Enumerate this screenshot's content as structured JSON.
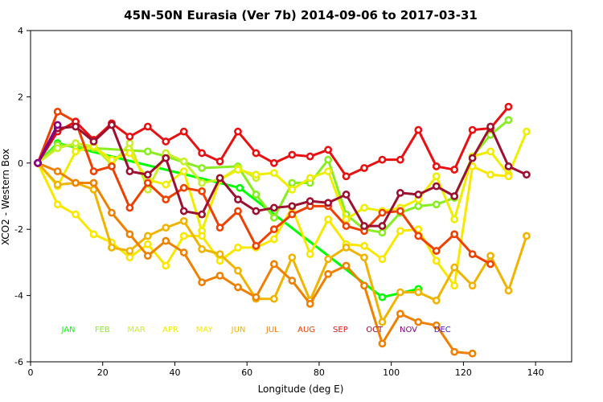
{
  "chart_data": {
    "type": "line",
    "title": "45N-50N Eurasia (Ver 7b)   2014-09-06 to 2017-03-31",
    "xlabel": "Longitude (deg E)",
    "ylabel": "XCO2 - Western Box",
    "xlim": [
      0,
      150
    ],
    "ylim": [
      -6,
      4
    ],
    "xticks": [
      0,
      20,
      40,
      60,
      80,
      100,
      120,
      140
    ],
    "yticks": [
      -6,
      -4,
      -2,
      0,
      2,
      4
    ],
    "series": [
      {
        "name": "JAN",
        "color": "#00ff00",
        "points": [
          [
            2,
            0
          ],
          [
            7.5,
            0.6
          ],
          [
            58,
            -0.75
          ],
          [
            97.5,
            -4.05
          ],
          [
            107.5,
            -3.8
          ]
        ]
      },
      {
        "name": "FEB",
        "color": "#88ee22",
        "points": [
          [
            2,
            0
          ],
          [
            7.5,
            0.55
          ],
          [
            12.5,
            0.5
          ],
          [
            17.5,
            0.45
          ],
          [
            32.5,
            0.35
          ],
          [
            37.5,
            0.2
          ],
          [
            47.5,
            -0.15
          ],
          [
            57.5,
            -0.1
          ],
          [
            62.5,
            -0.95
          ],
          [
            67.5,
            -1.65
          ],
          [
            72.5,
            -0.6
          ],
          [
            77.5,
            -0.6
          ],
          [
            82.5,
            0.1
          ],
          [
            87.5,
            -1.55
          ],
          [
            92.5,
            -2.0
          ],
          [
            97.5,
            -2.1
          ],
          [
            102.5,
            -1.5
          ],
          [
            107.5,
            -1.3
          ],
          [
            112.5,
            -1.25
          ],
          [
            117.5,
            -1.05
          ],
          [
            122.5,
            0.2
          ],
          [
            127.5,
            0.85
          ],
          [
            132.5,
            1.3
          ]
        ]
      },
      {
        "name": "MAR",
        "color": "#c8f028",
        "points": [
          [
            2,
            0
          ],
          [
            7.5,
            0.45
          ],
          [
            12.5,
            0.6
          ],
          [
            17.5,
            0.5
          ],
          [
            22.5,
            -0.05
          ],
          [
            27.5,
            0.6
          ],
          [
            32.5,
            -0.8
          ],
          [
            37.5,
            0.3
          ],
          [
            42.5,
            0.05
          ],
          [
            47.5,
            -0.6
          ],
          [
            52.5,
            -0.5
          ],
          [
            57.5,
            -0.15
          ],
          [
            62.5,
            -0.45
          ]
        ]
      },
      {
        "name": "APR",
        "color": "#eeee00",
        "points": [
          [
            2,
            0
          ],
          [
            7.5,
            -0.7
          ],
          [
            12.5,
            0.35
          ],
          [
            17.5,
            0.5
          ],
          [
            22.5,
            0.1
          ],
          [
            27.5,
            0.3
          ],
          [
            32.5,
            -0.5
          ],
          [
            37.5,
            -0.65
          ],
          [
            42.5,
            -0.25
          ],
          [
            47.5,
            -2.05
          ],
          [
            52.5,
            -0.5
          ],
          [
            57.5,
            -0.2
          ],
          [
            62.5,
            -0.35
          ],
          [
            67.5,
            -0.3
          ],
          [
            72.5,
            -0.8
          ],
          [
            77.5,
            -0.45
          ],
          [
            82.5,
            -0.25
          ],
          [
            87.5,
            -1.7
          ],
          [
            92.5,
            -1.35
          ],
          [
            97.5,
            -1.45
          ],
          [
            102.5,
            -1.35
          ],
          [
            107.5,
            -1.1
          ],
          [
            112.5,
            -0.4
          ],
          [
            117.5,
            -1.7
          ],
          [
            122.5,
            0.2
          ],
          [
            127.5,
            0.35
          ],
          [
            132.5,
            -0.35
          ],
          [
            137.5,
            0.95
          ]
        ]
      },
      {
        "name": "MAY",
        "color": "#f8e800",
        "points": [
          [
            2,
            0
          ],
          [
            7.5,
            -1.25
          ],
          [
            12.5,
            -1.55
          ],
          [
            17.5,
            -2.15
          ],
          [
            22.5,
            -2.4
          ],
          [
            27.5,
            -2.85
          ],
          [
            32.5,
            -2.45
          ],
          [
            37.5,
            -3.1
          ],
          [
            42.5,
            -2.2
          ],
          [
            47.5,
            -2.2
          ],
          [
            52.5,
            -2.95
          ],
          [
            57.5,
            -2.55
          ],
          [
            62.5,
            -2.55
          ],
          [
            67.5,
            -2.3
          ],
          [
            72.5,
            -1.35
          ],
          [
            77.5,
            -2.75
          ],
          [
            82.5,
            -1.7
          ],
          [
            87.5,
            -2.45
          ],
          [
            92.5,
            -2.5
          ],
          [
            97.5,
            -2.9
          ],
          [
            102.5,
            -2.05
          ],
          [
            107.5,
            -2.0
          ],
          [
            112.5,
            -2.95
          ],
          [
            117.5,
            -3.7
          ],
          [
            122.5,
            -0.1
          ],
          [
            127.5,
            -0.35
          ],
          [
            132.5,
            -0.4
          ]
        ]
      },
      {
        "name": "JUN",
        "color": "#f0b400",
        "points": [
          [
            2,
            0
          ],
          [
            7.5,
            -0.65
          ],
          [
            12.5,
            -0.6
          ],
          [
            17.5,
            -0.8
          ],
          [
            22.5,
            -2.55
          ],
          [
            27.5,
            -2.65
          ],
          [
            32.5,
            -2.2
          ],
          [
            37.5,
            -1.95
          ],
          [
            42.5,
            -1.75
          ],
          [
            47.5,
            -2.6
          ],
          [
            52.5,
            -2.75
          ],
          [
            57.5,
            -3.25
          ],
          [
            62.5,
            -4.1
          ],
          [
            67.5,
            -4.1
          ],
          [
            72.5,
            -2.85
          ],
          [
            77.5,
            -4.15
          ],
          [
            82.5,
            -2.9
          ],
          [
            87.5,
            -2.55
          ],
          [
            92.5,
            -2.85
          ],
          [
            97.5,
            -4.8
          ],
          [
            102.5,
            -3.9
          ],
          [
            107.5,
            -3.9
          ],
          [
            112.5,
            -4.15
          ],
          [
            117.5,
            -3.15
          ],
          [
            122.5,
            -3.7
          ],
          [
            127.5,
            -2.8
          ],
          [
            132.5,
            -3.85
          ],
          [
            137.5,
            -2.2
          ]
        ]
      },
      {
        "name": "JUL",
        "color": "#f08000",
        "points": [
          [
            2,
            0
          ],
          [
            7.5,
            -0.25
          ],
          [
            12.5,
            -0.6
          ],
          [
            17.5,
            -0.6
          ],
          [
            22.5,
            -1.5
          ],
          [
            27.5,
            -2.15
          ],
          [
            32.5,
            -2.8
          ],
          [
            37.5,
            -2.35
          ],
          [
            42.5,
            -2.7
          ],
          [
            47.5,
            -3.6
          ],
          [
            52.5,
            -3.4
          ],
          [
            57.5,
            -3.75
          ],
          [
            62.5,
            -4.05
          ],
          [
            67.5,
            -3.05
          ],
          [
            72.5,
            -3.55
          ],
          [
            77.5,
            -4.25
          ],
          [
            82.5,
            -3.35
          ],
          [
            87.5,
            -3.1
          ],
          [
            92.5,
            -3.7
          ],
          [
            97.5,
            -5.45
          ],
          [
            102.5,
            -4.55
          ],
          [
            107.5,
            -4.8
          ],
          [
            112.5,
            -4.9
          ],
          [
            117.5,
            -5.7
          ],
          [
            122.5,
            -5.75
          ]
        ]
      },
      {
        "name": "AUG",
        "color": "#f04000",
        "points": [
          [
            2,
            0
          ],
          [
            7.5,
            1.55
          ],
          [
            12.5,
            1.25
          ],
          [
            17.5,
            -0.25
          ],
          [
            22.5,
            -0.1
          ],
          [
            27.5,
            -1.35
          ],
          [
            32.5,
            -0.6
          ],
          [
            37.5,
            -1.1
          ],
          [
            42.5,
            -0.75
          ],
          [
            47.5,
            -0.85
          ],
          [
            52.5,
            -1.95
          ],
          [
            57.5,
            -1.45
          ],
          [
            62.5,
            -2.5
          ],
          [
            67.5,
            -2.0
          ],
          [
            72.5,
            -1.55
          ],
          [
            77.5,
            -1.3
          ],
          [
            82.5,
            -1.3
          ],
          [
            87.5,
            -1.9
          ],
          [
            92.5,
            -2.05
          ],
          [
            97.5,
            -1.5
          ],
          [
            102.5,
            -1.45
          ],
          [
            107.5,
            -2.2
          ],
          [
            112.5,
            -2.65
          ],
          [
            117.5,
            -2.15
          ],
          [
            122.5,
            -2.75
          ],
          [
            127.5,
            -3.05
          ]
        ]
      },
      {
        "name": "SEP",
        "color": "#e81010",
        "points": [
          [
            2,
            0
          ],
          [
            7.5,
            0.95
          ],
          [
            12.5,
            1.25
          ],
          [
            17.5,
            0.7
          ],
          [
            22.5,
            1.2
          ],
          [
            27.5,
            0.8
          ],
          [
            32.5,
            1.1
          ],
          [
            37.5,
            0.65
          ],
          [
            42.5,
            0.95
          ],
          [
            47.5,
            0.3
          ],
          [
            52.5,
            0.05
          ],
          [
            57.5,
            0.95
          ],
          [
            62.5,
            0.3
          ],
          [
            67.5,
            0.0
          ],
          [
            72.5,
            0.25
          ],
          [
            77.5,
            0.2
          ],
          [
            82.5,
            0.4
          ],
          [
            87.5,
            -0.4
          ],
          [
            92.5,
            -0.15
          ],
          [
            97.5,
            0.1
          ],
          [
            102.5,
            0.1
          ],
          [
            107.5,
            1.0
          ],
          [
            112.5,
            -0.1
          ],
          [
            117.5,
            -0.2
          ],
          [
            122.5,
            1.0
          ],
          [
            127.5,
            1.05
          ],
          [
            132.5,
            1.7
          ]
        ]
      },
      {
        "name": "OCT",
        "color": "#9c1030",
        "points": [
          [
            2,
            0
          ],
          [
            7.5,
            1.05
          ],
          [
            12.5,
            1.1
          ],
          [
            17.5,
            0.65
          ],
          [
            22.5,
            1.15
          ],
          [
            27.5,
            -0.25
          ],
          [
            32.5,
            -0.35
          ],
          [
            37.5,
            0.15
          ],
          [
            42.5,
            -1.45
          ],
          [
            47.5,
            -1.55
          ],
          [
            52.5,
            -0.45
          ],
          [
            57.5,
            -1.1
          ],
          [
            62.5,
            -1.45
          ],
          [
            67.5,
            -1.35
          ],
          [
            72.5,
            -1.3
          ],
          [
            77.5,
            -1.15
          ],
          [
            82.5,
            -1.2
          ],
          [
            87.5,
            -0.95
          ],
          [
            92.5,
            -1.9
          ],
          [
            97.5,
            -1.9
          ],
          [
            102.5,
            -0.9
          ],
          [
            107.5,
            -0.95
          ],
          [
            112.5,
            -0.7
          ],
          [
            117.5,
            -1.0
          ],
          [
            122.5,
            0.15
          ],
          [
            127.5,
            1.1
          ],
          [
            132.5,
            -0.1
          ],
          [
            137.5,
            -0.35
          ]
        ]
      },
      {
        "name": "NOV",
        "color": "#880088",
        "points": [
          [
            2,
            0
          ],
          [
            7.5,
            1.15
          ]
        ]
      },
      {
        "name": "DEC",
        "color": "#5010c8",
        "points": []
      }
    ]
  }
}
